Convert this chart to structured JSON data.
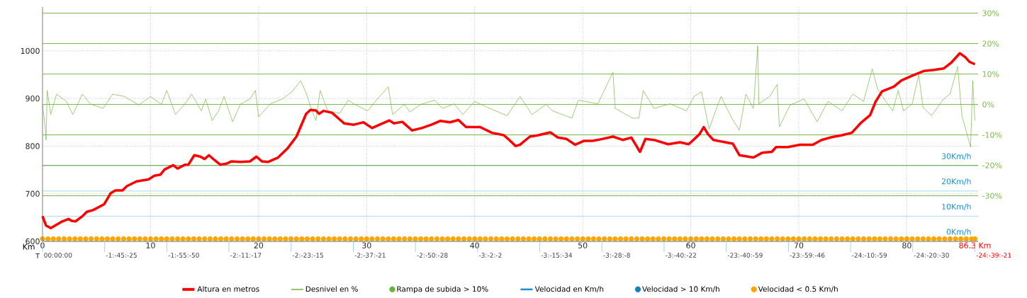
{
  "chart_data": {
    "type": "line",
    "xlabel": "Km",
    "xlim": [
      0,
      86.6
    ],
    "xticks": [
      0,
      10,
      20,
      30,
      40,
      50,
      60,
      70,
      80,
      {
        "value": 86.3,
        "label": "86.3 Km"
      }
    ],
    "annotations": [
      "T",
      "00:00:00",
      "-1:-45:-25",
      "-1:-55:-50",
      "-2:-11:-17",
      "-2:-23:-15",
      "-2:-37:-21",
      "-2:-50:-28",
      "-3:-2:-2",
      "-3:-15:-34",
      "-3:-28:-8",
      "-3:-40:-22",
      "-23:-40:-59",
      "-23:-59:-46",
      "-24:-10:-59",
      "-24:-20:-30",
      "-24:-39:-21"
    ],
    "ylim": [
      600,
      1092
    ],
    "yticks": [
      600,
      700,
      800,
      900,
      1000
    ],
    "y2lim": [
      -45,
      32
    ],
    "y2ticks": [
      {
        "value": 30,
        "label": "30%"
      },
      {
        "value": 20,
        "label": "20%"
      },
      {
        "value": 10,
        "label": "10%"
      },
      {
        "value": 0,
        "label": "0%"
      },
      {
        "value": -10,
        "label": "-10%"
      },
      {
        "value": -20,
        "label": "-20%"
      },
      {
        "value": -30,
        "label": "-30%"
      }
    ],
    "y3lim": [
      0,
      93
    ],
    "y3ticks": [
      {
        "value": 0,
        "label": "0Km/h"
      },
      {
        "value": 10,
        "label": "10Km/h"
      },
      {
        "value": 20,
        "label": "20Km/h"
      },
      {
        "value": 30,
        "label": "30Km/h"
      }
    ],
    "grid": true,
    "legend": "bottom",
    "series": [
      {
        "name": "Altura en metros",
        "axis": "y",
        "color": "#ff0000",
        "x": [
          0,
          0.33,
          0.76,
          1.74,
          2.4,
          2.7,
          3.05,
          3.7,
          4.1,
          4.7,
          5.7,
          6.3,
          6.75,
          7.4,
          7.8,
          8.7,
          9.8,
          10.35,
          10.9,
          11.3,
          12.1,
          12.5,
          13.2,
          13.5,
          14.05,
          14.6,
          15.0,
          15.4,
          15.9,
          16.45,
          17.0,
          17.5,
          18.3,
          19.2,
          19.8,
          20.3,
          20.9,
          21.8,
          22.7,
          23.5,
          24.4,
          24.8,
          25.3,
          25.6,
          26.0,
          26.8,
          27.5,
          27.9,
          28.8,
          29.7,
          30.5,
          31.2,
          32.1,
          32.5,
          33.3,
          34.2,
          35.1,
          36.0,
          36.8,
          37.7,
          38.5,
          39.2,
          40.5,
          41.6,
          42.7,
          43.1,
          43.8,
          44.2,
          45.1,
          45.9,
          47.0,
          47.7,
          48.5,
          49.3,
          50.1,
          50.9,
          51.8,
          52.8,
          53.7,
          54.5,
          55.3,
          55.8,
          56.6,
          57.9,
          59.0,
          59.8,
          60.1,
          60.8,
          61.2,
          61.6,
          62.1,
          63.2,
          63.9,
          64.5,
          65.3,
          65.8,
          66.6,
          67.5,
          67.9,
          69.0,
          70.1,
          71.3,
          72.1,
          72.9,
          74.0,
          74.9,
          75.8,
          76.6,
          77.1,
          77.7,
          78.8,
          79.5,
          80.5,
          81.6,
          82.5,
          83.4,
          84.1,
          84.9,
          85.4,
          85.8,
          86.3
        ],
        "values": [
          653,
          633,
          628,
          641,
          647,
          643,
          642,
          653,
          662,
          666,
          678,
          701,
          707,
          707,
          716,
          726,
          730,
          738,
          740,
          751,
          760,
          753,
          761,
          761,
          781,
          778,
          773,
          781,
          771,
          761,
          763,
          768,
          767,
          768,
          778,
          768,
          767,
          776,
          796,
          820,
          868,
          876,
          875,
          868,
          874,
          870,
          856,
          848,
          845,
          850,
          838,
          845,
          854,
          848,
          851,
          833,
          838,
          845,
          853,
          850,
          855,
          840,
          840,
          828,
          823,
          815,
          800,
          803,
          820,
          823,
          829,
          818,
          815,
          803,
          811,
          811,
          815,
          820,
          813,
          818,
          788,
          815,
          813,
          804,
          808,
          804,
          810,
          825,
          840,
          825,
          813,
          808,
          805,
          781,
          778,
          776,
          786,
          788,
          798,
          798,
          803,
          803,
          813,
          818,
          823,
          828,
          850,
          865,
          893,
          915,
          925,
          938,
          948,
          958,
          960,
          963,
          975,
          995,
          987,
          977,
          972
        ]
      },
      {
        "name": "Desnivel en %",
        "axis": "y2",
        "color": "#7ab648",
        "x": [
          0,
          0.2,
          0.33,
          0.43,
          0.76,
          1.3,
          2.2,
          2.8,
          3.7,
          4.4,
          5.6,
          6.5,
          7.6,
          8.9,
          10.0,
          11.0,
          11.5,
          12.3,
          13.1,
          13.8,
          14.7,
          15.1,
          15.7,
          16.3,
          16.8,
          17.6,
          18.3,
          19.2,
          19.7,
          20.0,
          21.1,
          22.2,
          23.1,
          23.9,
          24.4,
          24.8,
          25.3,
          25.7,
          26.4,
          27.5,
          28.3,
          28.8,
          30.1,
          30.9,
          32.0,
          32.4,
          33.5,
          34.0,
          35.0,
          36.3,
          37.0,
          38.1,
          38.9,
          40.0,
          41.2,
          43.0,
          44.2,
          45.3,
          46.6,
          47.2,
          49.0,
          49.6,
          51.4,
          52.8,
          53.0,
          54.6,
          55.2,
          55.6,
          56.6,
          58.1,
          59.6,
          60.3,
          61.0,
          61.4,
          61.7,
          62.3,
          62.8,
          63.8,
          64.5,
          65.1,
          65.8,
          66.2,
          66.3,
          67.3,
          68.0,
          68.2,
          69.2,
          70.5,
          71.7,
          72.7,
          74.0,
          75.0,
          76.0,
          76.8,
          77.3,
          77.9,
          78.7,
          79.2,
          79.7,
          80.5,
          81.1,
          81.5,
          82.3,
          83.4,
          84.0,
          84.7,
          85.1,
          85.9,
          86.1,
          86.3
        ],
        "values": [
          0,
          -6,
          -11.7,
          4.6,
          -3.3,
          3.4,
          1,
          -3.3,
          3.4,
          0.2,
          -1.3,
          3.4,
          2.6,
          -0.2,
          2.6,
          0,
          4.6,
          -3.3,
          -0.2,
          3.4,
          -2.1,
          1.8,
          -5.3,
          -2.1,
          2.6,
          -5.7,
          0,
          1.8,
          4.6,
          -4.1,
          0.2,
          1.8,
          4.2,
          7.8,
          3.8,
          -0.6,
          -5.3,
          4.6,
          -2.1,
          -2.9,
          1.4,
          0.2,
          -2.1,
          1.4,
          5.8,
          -3.3,
          0,
          -2.5,
          0,
          1.4,
          -1.3,
          0.2,
          -3.3,
          1.0,
          -1.0,
          -3.7,
          2.6,
          -3.3,
          0,
          -2.1,
          -4.5,
          1.4,
          0.2,
          10.6,
          -1.3,
          -4.5,
          -4.5,
          4.6,
          -1.3,
          0.2,
          -2.1,
          2.6,
          4.2,
          -2.9,
          -8.1,
          -2.1,
          2.6,
          -4.5,
          -8.5,
          3.4,
          -1.3,
          19.3,
          0.2,
          2.6,
          6.6,
          -7.3,
          -0.2,
          1.8,
          -5.7,
          1.0,
          -2.1,
          3.4,
          1.0,
          11.7,
          5.0,
          1.8,
          -2.1,
          4.6,
          -2.1,
          0.2,
          9.8,
          -1.0,
          -3.7,
          1.8,
          3.4,
          12.5,
          -3.7,
          -14.0,
          7.8,
          -5.3
        ]
      },
      {
        "name": "Rampa de subida > 10%",
        "type": "scatter",
        "axis": "y2",
        "marker": "circle",
        "color": "#6ab23c"
      },
      {
        "name": "Velocidad en Km/h",
        "axis": "y3",
        "color": "#1a8fd0"
      },
      {
        "name": "Velocidad > 10 Km/h",
        "type": "scatter",
        "axis": "y3",
        "marker": "circle",
        "color": "#1a7fc0"
      },
      {
        "name": "Velocidad < 0.5 Km/h",
        "type": "scatter",
        "axis": "y3",
        "marker": "circle",
        "color": "#ffa500",
        "x": [
          0,
          0.5,
          1,
          1.5,
          2,
          2.5,
          3,
          3.5,
          4,
          4.5,
          5,
          5.5,
          6,
          6.5,
          7,
          7.5,
          8,
          8.5,
          9,
          9.5,
          10,
          10.5,
          11,
          11.5,
          12,
          12.5,
          13,
          13.5,
          14,
          14.5,
          15,
          15.5,
          16,
          16.5,
          17,
          17.5,
          18,
          18.5,
          19,
          19.5,
          20,
          20.5,
          21,
          21.5,
          22,
          22.5,
          23,
          23.5,
          24,
          24.5,
          25,
          25.5,
          26,
          26.5,
          27,
          27.5,
          28,
          28.5,
          29,
          29.5,
          30,
          30.5,
          31,
          31.5,
          32,
          32.5,
          33,
          33.5,
          34,
          34.5,
          35,
          35.5,
          36,
          36.5,
          37,
          37.5,
          38,
          38.5,
          39,
          39.5,
          40,
          40.5,
          41,
          41.5,
          42,
          42.5,
          43,
          43.5,
          44,
          44.5,
          45,
          45.5,
          46,
          46.5,
          47,
          47.5,
          48,
          48.5,
          49,
          49.5,
          50,
          50.5,
          51,
          51.5,
          52,
          52.5,
          53,
          53.5,
          54,
          54.5,
          55,
          55.5,
          56,
          56.5,
          57,
          57.5,
          58,
          58.5,
          59,
          59.5,
          60,
          60.5,
          61,
          61.5,
          62,
          62.5,
          63,
          63.5,
          64,
          64.5,
          65,
          65.5,
          66,
          66.5,
          67,
          67.5,
          68,
          68.5,
          69,
          69.5,
          70,
          70.5,
          71,
          71.5,
          72,
          72.5,
          73,
          73.5,
          74,
          74.5,
          75,
          75.5,
          76,
          76.5,
          77,
          77.5,
          78,
          78.5,
          79,
          79.5,
          80,
          80.5,
          81,
          81.5,
          82,
          82.5,
          83,
          83.5,
          84,
          84.5,
          85,
          85.5,
          86,
          86.3
        ],
        "values": [
          1,
          1,
          1,
          1,
          1,
          1,
          1,
          1,
          1,
          1,
          1,
          1,
          1,
          1,
          1,
          1,
          1,
          1,
          1,
          1,
          1,
          1,
          1,
          1,
          1,
          1,
          1,
          1,
          1,
          1,
          1,
          1,
          1,
          1,
          1,
          1,
          1,
          1,
          1,
          1,
          1,
          1,
          1,
          1,
          1,
          1,
          1,
          1,
          1,
          1,
          1,
          1,
          1,
          1,
          1,
          1,
          1,
          1,
          1,
          1,
          1,
          1,
          1,
          1,
          1,
          1,
          1,
          1,
          1,
          1,
          1,
          1,
          1,
          1,
          1,
          1,
          1,
          1,
          1,
          1,
          1,
          1,
          1,
          1,
          1,
          1,
          1,
          1,
          1,
          1,
          1,
          1,
          1,
          1,
          1,
          1,
          1,
          1,
          1,
          1,
          1,
          1,
          1,
          1,
          1,
          1,
          1,
          1,
          1,
          1,
          1,
          1,
          1,
          1,
          1,
          1,
          1,
          1,
          1,
          1,
          1,
          1,
          1,
          1,
          1,
          1,
          1,
          1,
          1,
          1,
          1,
          1,
          1,
          1,
          1,
          1,
          1,
          1,
          1,
          1,
          1,
          1,
          1,
          1,
          1,
          1,
          1,
          1,
          1,
          1,
          1,
          1,
          1,
          1,
          1,
          1,
          1,
          1,
          1,
          1,
          1,
          1,
          1,
          1,
          1,
          1,
          1,
          1,
          1,
          1,
          1,
          1,
          1,
          1
        ]
      }
    ]
  }
}
